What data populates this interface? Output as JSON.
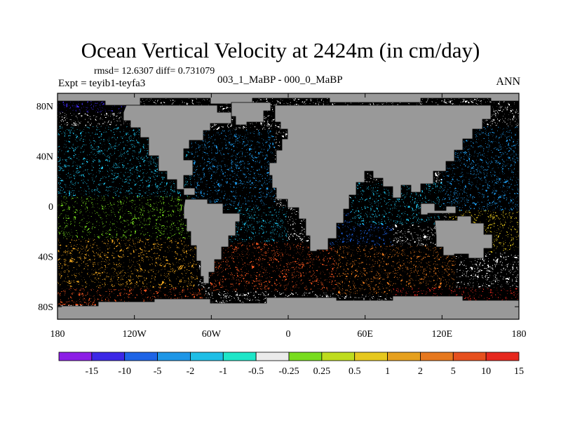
{
  "chart_data": {
    "type": "heatmap",
    "title": "Ocean Vertical Velocity at 2424m (in cm/day)",
    "subtitle_stats": "rmsd= 12.6307 diff= 0.731079",
    "experiment": "Expt = teyib1-teyfa3",
    "experiment_name": "003_1_MaBP - 000_0_MaBP",
    "season": "ANN",
    "xlabel": "",
    "ylabel": "",
    "xlim": [
      -180,
      180
    ],
    "ylim": [
      -90,
      90
    ],
    "x_tick_values": [
      -180,
      -120,
      -60,
      0,
      60,
      120,
      180
    ],
    "x_tick_labels": [
      "180",
      "120W",
      "60W",
      "0",
      "60E",
      "120E",
      "180"
    ],
    "y_tick_values": [
      80,
      40,
      0,
      -40,
      -80
    ],
    "y_tick_labels": [
      "80N",
      "40N",
      "0",
      "40S",
      "80S"
    ],
    "land_color": "#999999",
    "colorbar": {
      "colors": [
        "#8c1ee6",
        "#3c28e6",
        "#1e64e6",
        "#1e96e6",
        "#1ebee6",
        "#1ee6c8",
        "#ebebeb",
        "#78dc1e",
        "#bedc1e",
        "#e6c81e",
        "#e6a01e",
        "#e6781e",
        "#e6501e",
        "#e6281e"
      ],
      "labels": [
        "-15",
        "-10",
        "-5",
        "-2",
        "-1",
        "-0.5",
        "-0.25",
        "0.25",
        "0.5",
        "1",
        "2",
        "5",
        "10",
        "15"
      ]
    },
    "field_description": "anomaly field"
  }
}
